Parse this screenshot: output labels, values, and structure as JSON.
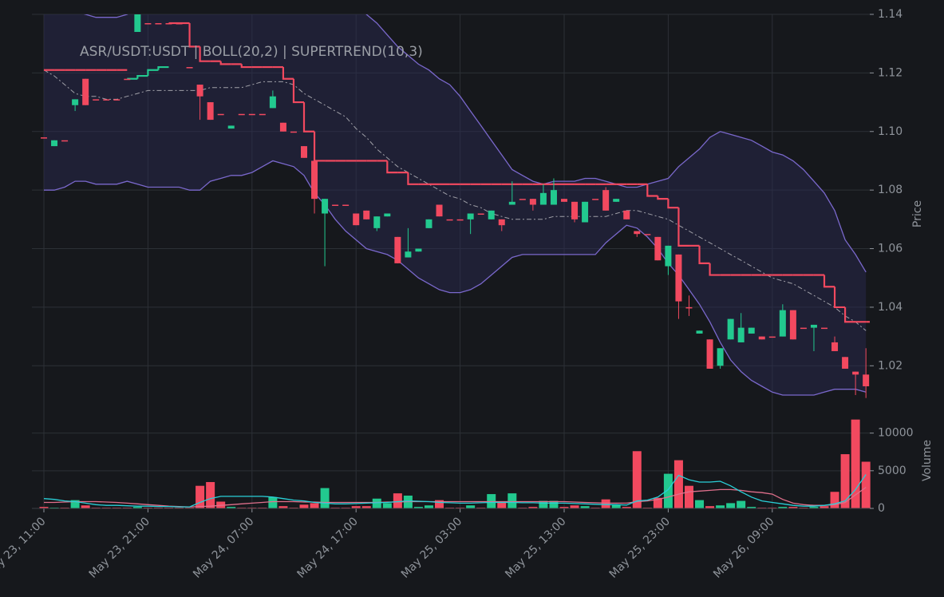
{
  "chart_data": {
    "type": "candlestick",
    "title": "ASR/USDT:USDT | BOLL(20,2) | SUPERTREND(10,3)",
    "ylabel": "Price",
    "x": [
      "May 23, 11:00",
      "May 23, 12:00",
      "May 23, 13:00",
      "May 23, 14:00",
      "May 23, 15:00",
      "May 23, 16:00",
      "May 23, 17:00",
      "May 23, 18:00",
      "May 23, 19:00",
      "May 23, 20:00",
      "May 23, 21:00",
      "May 23, 22:00",
      "May 23, 23:00",
      "May 24, 00:00",
      "May 24, 01:00",
      "May 24, 02:00",
      "May 24, 03:00",
      "May 24, 04:00",
      "May 24, 05:00",
      "May 24, 06:00",
      "May 24, 07:00",
      "May 24, 08:00",
      "May 24, 09:00",
      "May 24, 10:00",
      "May 24, 11:00",
      "May 24, 12:00",
      "May 24, 13:00",
      "May 24, 14:00",
      "May 24, 15:00",
      "May 24, 16:00",
      "May 24, 17:00",
      "May 24, 18:00",
      "May 24, 19:00",
      "May 24, 20:00",
      "May 24, 21:00",
      "May 24, 22:00",
      "May 24, 23:00",
      "May 25, 00:00",
      "May 25, 01:00",
      "May 25, 02:00",
      "May 25, 03:00",
      "May 25, 04:00",
      "May 25, 05:00",
      "May 25, 06:00",
      "May 25, 07:00",
      "May 25, 08:00",
      "May 25, 09:00",
      "May 25, 10:00",
      "May 25, 11:00",
      "May 25, 12:00",
      "May 25, 13:00",
      "May 25, 14:00",
      "May 25, 15:00",
      "May 25, 16:00",
      "May 25, 17:00",
      "May 25, 18:00",
      "May 25, 19:00",
      "May 25, 20:00",
      "May 25, 21:00",
      "May 25, 22:00",
      "May 25, 23:00",
      "May 26, 00:00",
      "May 26, 01:00",
      "May 26, 02:00",
      "May 26, 03:00",
      "May 26, 04:00",
      "May 26, 05:00",
      "May 26, 06:00",
      "May 26, 07:00",
      "May 26, 08:00",
      "May 26, 09:00",
      "May 26, 10:00",
      "May 26, 11:00",
      "May 26, 12:00",
      "May 26, 13:00",
      "May 26, 14:00",
      "May 26, 15:00",
      "May 26, 16:00",
      "May 26, 17:00",
      "May 26, 18:00"
    ],
    "xticks": [
      "May 23, 11:00",
      "May 23, 21:00",
      "May 24, 07:00",
      "May 24, 17:00",
      "May 25, 03:00",
      "May 25, 13:00",
      "May 25, 23:00",
      "May 26, 09:00"
    ],
    "open": [
      1.098,
      1.095,
      1.097,
      1.109,
      1.118,
      1.111,
      1.111,
      1.111,
      1.118,
      1.134,
      1.137,
      1.137,
      1.137,
      1.137,
      1.122,
      1.116,
      1.11,
      1.106,
      1.101,
      1.106,
      1.106,
      1.106,
      1.108,
      1.103,
      1.1,
      1.095,
      1.09,
      1.072,
      1.075,
      1.075,
      1.072,
      1.073,
      1.067,
      1.071,
      1.064,
      1.057,
      1.059,
      1.067,
      1.075,
      1.07,
      1.07,
      1.07,
      1.072,
      1.07,
      1.07,
      1.075,
      1.077,
      1.077,
      1.075,
      1.075,
      1.077,
      1.076,
      1.069,
      1.077,
      1.08,
      1.076,
      1.073,
      1.066,
      1.065,
      1.064,
      1.054,
      1.058,
      1.04,
      1.031,
      1.029,
      1.02,
      1.029,
      1.028,
      1.031,
      1.03,
      1.03,
      1.03,
      1.039,
      1.033,
      1.033,
      1.033,
      1.028,
      1.023,
      1.018,
      1.017
    ],
    "high": [
      1.098,
      1.097,
      1.097,
      1.111,
      1.118,
      1.111,
      1.111,
      1.111,
      1.118,
      1.141,
      1.137,
      1.137,
      1.137,
      1.137,
      1.122,
      1.116,
      1.11,
      1.106,
      1.102,
      1.106,
      1.106,
      1.106,
      1.114,
      1.103,
      1.1,
      1.095,
      1.09,
      1.077,
      1.075,
      1.075,
      1.072,
      1.073,
      1.071,
      1.072,
      1.064,
      1.067,
      1.06,
      1.07,
      1.075,
      1.07,
      1.07,
      1.072,
      1.072,
      1.073,
      1.07,
      1.083,
      1.077,
      1.077,
      1.082,
      1.084,
      1.077,
      1.076,
      1.076,
      1.077,
      1.081,
      1.077,
      1.073,
      1.066,
      1.065,
      1.064,
      1.061,
      1.058,
      1.044,
      1.032,
      1.029,
      1.026,
      1.036,
      1.038,
      1.033,
      1.03,
      1.03,
      1.041,
      1.039,
      1.033,
      1.034,
      1.033,
      1.03,
      1.023,
      1.018,
      1.026
    ],
    "low": [
      1.098,
      1.095,
      1.097,
      1.107,
      1.109,
      1.111,
      1.111,
      1.111,
      1.118,
      1.134,
      1.137,
      1.137,
      1.137,
      1.137,
      1.122,
      1.104,
      1.104,
      1.106,
      1.101,
      1.106,
      1.106,
      1.106,
      1.108,
      1.1,
      1.1,
      1.091,
      1.072,
      1.054,
      1.075,
      1.075,
      1.068,
      1.07,
      1.066,
      1.071,
      1.055,
      1.057,
      1.059,
      1.067,
      1.071,
      1.07,
      1.07,
      1.065,
      1.072,
      1.07,
      1.066,
      1.075,
      1.077,
      1.073,
      1.075,
      1.075,
      1.076,
      1.069,
      1.069,
      1.077,
      1.073,
      1.076,
      1.07,
      1.064,
      1.065,
      1.056,
      1.051,
      1.036,
      1.037,
      1.031,
      1.019,
      1.019,
      1.029,
      1.028,
      1.031,
      1.029,
      1.03,
      1.03,
      1.029,
      1.033,
      1.025,
      1.033,
      1.025,
      1.019,
      1.01,
      1.009
    ],
    "close": [
      1.098,
      1.097,
      1.097,
      1.111,
      1.109,
      1.111,
      1.111,
      1.111,
      1.118,
      1.141,
      1.137,
      1.137,
      1.137,
      1.137,
      1.122,
      1.112,
      1.104,
      1.106,
      1.102,
      1.106,
      1.106,
      1.106,
      1.112,
      1.1,
      1.1,
      1.091,
      1.077,
      1.077,
      1.075,
      1.075,
      1.068,
      1.07,
      1.071,
      1.072,
      1.055,
      1.059,
      1.06,
      1.07,
      1.071,
      1.07,
      1.07,
      1.072,
      1.072,
      1.073,
      1.068,
      1.076,
      1.077,
      1.075,
      1.079,
      1.08,
      1.076,
      1.07,
      1.076,
      1.077,
      1.073,
      1.077,
      1.07,
      1.065,
      1.065,
      1.056,
      1.061,
      1.042,
      1.04,
      1.032,
      1.019,
      1.026,
      1.036,
      1.033,
      1.033,
      1.029,
      1.03,
      1.039,
      1.029,
      1.033,
      1.034,
      1.033,
      1.025,
      1.019,
      1.017,
      1.013
    ],
    "up_color": "#22c98f",
    "down_color": "#f2495f",
    "ylim": [
      1.007,
      1.14
    ],
    "yticks": [
      1.02,
      1.04,
      1.06,
      1.08,
      {
        "value": 1.1,
        "label": "1.10"
      },
      1.12,
      1.14
    ],
    "grid": true,
    "bollinger": {
      "color": "#7a68cc",
      "middle_color": "#a0a0a8",
      "fill": "#2a2a55",
      "upper": [
        1.143,
        1.142,
        1.141,
        1.141,
        1.14,
        1.139,
        1.139,
        1.139,
        1.14,
        1.142,
        1.144,
        1.146,
        1.148,
        1.149,
        1.15,
        1.15,
        1.15,
        1.15,
        1.15,
        1.15,
        1.15,
        1.15,
        1.15,
        1.15,
        1.15,
        1.15,
        1.15,
        1.15,
        1.15,
        1.147,
        1.143,
        1.14,
        1.137,
        1.133,
        1.129,
        1.126,
        1.123,
        1.121,
        1.118,
        1.116,
        1.112,
        1.107,
        1.102,
        1.097,
        1.092,
        1.087,
        1.085,
        1.083,
        1.082,
        1.083,
        1.083,
        1.083,
        1.084,
        1.084,
        1.083,
        1.082,
        1.081,
        1.081,
        1.082,
        1.083,
        1.084,
        1.088,
        1.091,
        1.094,
        1.098,
        1.1,
        1.099,
        1.098,
        1.097,
        1.095,
        1.093,
        1.092,
        1.09,
        1.087,
        1.083,
        1.079,
        1.073,
        1.063,
        1.058,
        1.052
      ],
      "middle": [
        1.121,
        1.119,
        1.116,
        1.113,
        1.112,
        1.112,
        1.111,
        1.111,
        1.112,
        1.113,
        1.114,
        1.114,
        1.114,
        1.114,
        1.114,
        1.114,
        1.115,
        1.115,
        1.115,
        1.115,
        1.116,
        1.117,
        1.117,
        1.117,
        1.116,
        1.113,
        1.111,
        1.109,
        1.107,
        1.105,
        1.101,
        1.098,
        1.094,
        1.091,
        1.088,
        1.086,
        1.084,
        1.082,
        1.08,
        1.078,
        1.077,
        1.075,
        1.074,
        1.072,
        1.071,
        1.07,
        1.07,
        1.07,
        1.07,
        1.071,
        1.071,
        1.071,
        1.071,
        1.071,
        1.071,
        1.072,
        1.073,
        1.073,
        1.072,
        1.071,
        1.07,
        1.068,
        1.066,
        1.064,
        1.062,
        1.06,
        1.058,
        1.056,
        1.054,
        1.052,
        1.05,
        1.049,
        1.048,
        1.046,
        1.044,
        1.042,
        1.04,
        1.037,
        1.035,
        1.032
      ],
      "lower": [
        1.08,
        1.08,
        1.081,
        1.083,
        1.083,
        1.082,
        1.082,
        1.082,
        1.083,
        1.082,
        1.081,
        1.081,
        1.081,
        1.081,
        1.08,
        1.08,
        1.083,
        1.084,
        1.085,
        1.085,
        1.086,
        1.088,
        1.09,
        1.089,
        1.088,
        1.085,
        1.079,
        1.075,
        1.07,
        1.066,
        1.063,
        1.06,
        1.059,
        1.058,
        1.056,
        1.053,
        1.05,
        1.048,
        1.046,
        1.045,
        1.045,
        1.046,
        1.048,
        1.051,
        1.054,
        1.057,
        1.058,
        1.058,
        1.058,
        1.058,
        1.058,
        1.058,
        1.058,
        1.058,
        1.062,
        1.065,
        1.068,
        1.067,
        1.064,
        1.06,
        1.055,
        1.051,
        1.046,
        1.041,
        1.035,
        1.028,
        1.022,
        1.018,
        1.015,
        1.013,
        1.011,
        1.01,
        1.01,
        1.01,
        1.01,
        1.011,
        1.012,
        1.012,
        1.012,
        1.011
      ]
    },
    "supertrend": {
      "down_color": "#f2495f",
      "up_color": "#22c98f",
      "down": [
        1.121,
        1.121,
        1.121,
        1.121,
        1.121,
        1.121,
        1.121,
        1.121,
        null,
        null,
        null,
        null,
        1.137,
        1.137,
        1.129,
        1.124,
        1.124,
        1.123,
        1.123,
        1.122,
        1.122,
        1.122,
        1.122,
        1.118,
        1.11,
        1.1,
        1.09,
        1.09,
        1.09,
        1.09,
        1.09,
        1.09,
        1.09,
        1.086,
        1.086,
        1.082,
        1.082,
        1.082,
        1.082,
        1.082,
        1.082,
        1.082,
        1.082,
        1.082,
        1.082,
        1.082,
        1.082,
        1.082,
        1.082,
        1.082,
        1.082,
        1.082,
        1.082,
        1.082,
        1.082,
        1.082,
        1.082,
        1.082,
        1.078,
        1.077,
        1.074,
        1.061,
        1.061,
        1.055,
        1.051,
        1.051,
        1.051,
        1.051,
        1.051,
        1.051,
        1.051,
        1.051,
        1.051,
        1.051,
        1.051,
        1.047,
        1.04,
        1.035,
        1.035,
        1.035
      ],
      "up": [
        null,
        null,
        null,
        null,
        null,
        null,
        null,
        null,
        1.118,
        1.119,
        1.121,
        1.122,
        null,
        null,
        null,
        null,
        null,
        null,
        null,
        null,
        null,
        null,
        null,
        null,
        null,
        null,
        null,
        null,
        null,
        null,
        null,
        null,
        null,
        null,
        null,
        null,
        null,
        null,
        null,
        null,
        null,
        null,
        null,
        null,
        null,
        null,
        null,
        null,
        null,
        null,
        null,
        null,
        null,
        null,
        null,
        null,
        null,
        null,
        null,
        null,
        null,
        null,
        null,
        null,
        null,
        null,
        null,
        null,
        null,
        null,
        null,
        null,
        null,
        null,
        null,
        null,
        null,
        null,
        null,
        null
      ]
    },
    "volume": {
      "ylabel": "Volume",
      "ylim": [
        0,
        12400
      ],
      "yticks": [
        0,
        5000,
        10000
      ],
      "values": [
        200,
        100,
        100,
        1100,
        400,
        100,
        100,
        100,
        100,
        200,
        100,
        100,
        100,
        100,
        100,
        3000,
        3500,
        900,
        200,
        100,
        100,
        100,
        1500,
        300,
        100,
        500,
        700,
        2700,
        100,
        100,
        300,
        300,
        1300,
        700,
        2000,
        1700,
        200,
        400,
        1100,
        100,
        100,
        400,
        100,
        1900,
        900,
        2000,
        100,
        200,
        1000,
        1000,
        200,
        400,
        300,
        100,
        1200,
        500,
        200,
        7600,
        100,
        1400,
        4600,
        6400,
        3000,
        1100,
        300,
        400,
        700,
        1000,
        200,
        100,
        100,
        200,
        200,
        100,
        200,
        300,
        2200,
        7200,
        11800,
        6200
      ],
      "ma_fast": {
        "color": "#2ad0d8",
        "values": [
          1300,
          1200,
          1000,
          900,
          700,
          500,
          400,
          400,
          350,
          300,
          300,
          250,
          250,
          200,
          200,
          800,
          1300,
          1600,
          1600,
          1600,
          1600,
          1600,
          1500,
          1300,
          1100,
          1000,
          800,
          700,
          600,
          600,
          650,
          700,
          750,
          800,
          900,
          1000,
          950,
          900,
          800,
          750,
          700,
          700,
          750,
          800,
          800,
          800,
          750,
          750,
          700,
          700,
          700,
          650,
          600,
          550,
          500,
          500,
          450,
          1000,
          1100,
          1500,
          2500,
          4400,
          3800,
          3500,
          3500,
          3600,
          3000,
          2200,
          1500,
          1000,
          800,
          600,
          400,
          300,
          300,
          400,
          600,
          1000,
          2500,
          4500
        ]
      },
      "ma_slow": {
        "color": "#e0708c",
        "values": [
          800,
          800,
          850,
          900,
          900,
          900,
          850,
          800,
          700,
          600,
          500,
          400,
          300,
          250,
          200,
          250,
          300,
          400,
          500,
          600,
          700,
          800,
          900,
          900,
          900,
          850,
          850,
          800,
          800,
          800,
          800,
          800,
          800,
          850,
          850,
          900,
          900,
          900,
          900,
          900,
          900,
          900,
          900,
          900,
          900,
          900,
          900,
          900,
          900,
          900,
          900,
          850,
          800,
          750,
          700,
          700,
          700,
          900,
          1000,
          1200,
          1500,
          1900,
          2200,
          2300,
          2400,
          2500,
          2500,
          2400,
          2200,
          2100,
          1900,
          1200,
          700,
          500,
          400,
          400,
          500,
          800,
          1800,
          2800
        ]
      }
    }
  }
}
